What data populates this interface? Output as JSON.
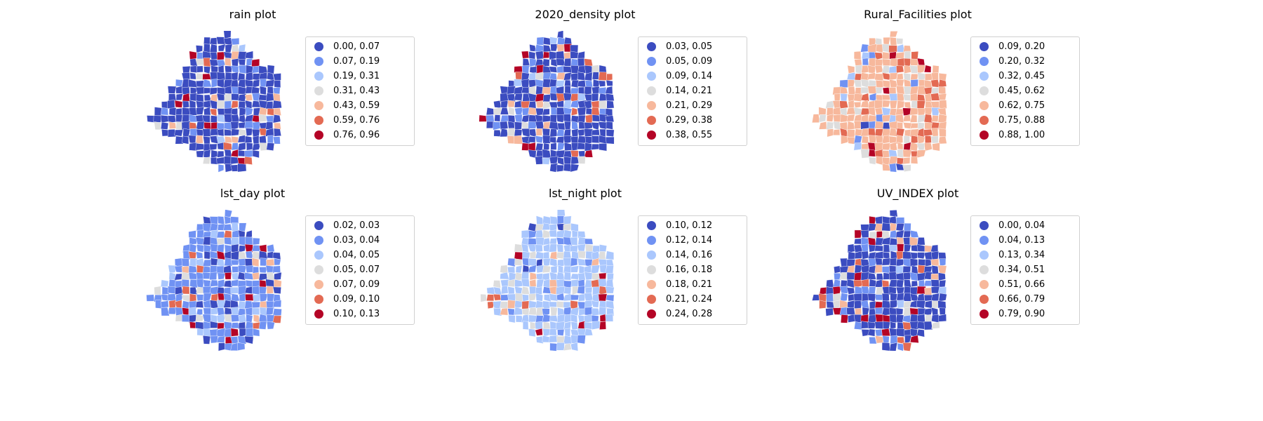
{
  "colors": {
    "class_1": "#3b4cc0",
    "class_2": "#7092f3",
    "class_3": "#aac7fd",
    "class_4": "#dddddd",
    "class_5": "#f7b89c",
    "class_6": "#e36a53",
    "class_7": "#b40426"
  },
  "panels": [
    {
      "title": "rain plot",
      "legend": [
        "0.00, 0.07",
        "0.07, 0.19",
        "0.19, 0.31",
        "0.31, 0.43",
        "0.43, 0.59",
        "0.59, 0.76",
        "0.76, 0.96"
      ],
      "dominant_class": 1
    },
    {
      "title": "2020_density plot",
      "legend": [
        "0.03, 0.05",
        "0.05, 0.09",
        "0.09, 0.14",
        "0.14, 0.21",
        "0.21, 0.29",
        "0.29, 0.38",
        "0.38, 0.55"
      ],
      "dominant_class": 1
    },
    {
      "title": "Rural_Facilities plot",
      "legend": [
        "0.09, 0.20",
        "0.20, 0.32",
        "0.32, 0.45",
        "0.45, 0.62",
        "0.62, 0.75",
        "0.75, 0.88",
        "0.88, 1.00"
      ],
      "dominant_class": 5
    },
    {
      "title": "lst_day plot",
      "legend": [
        "0.02, 0.03",
        "0.03, 0.04",
        "0.04, 0.05",
        "0.05, 0.07",
        "0.07, 0.09",
        "0.09, 0.10",
        "0.10, 0.13"
      ],
      "dominant_class": 2
    },
    {
      "title": "lst_night plot",
      "legend": [
        "0.10, 0.12",
        "0.12, 0.14",
        "0.14, 0.16",
        "0.16, 0.18",
        "0.18, 0.21",
        "0.21, 0.24",
        "0.24, 0.28"
      ],
      "dominant_class": 3
    },
    {
      "title": "UV_INDEX plot",
      "legend": [
        "0.00, 0.04",
        "0.04, 0.13",
        "0.13, 0.34",
        "0.34, 0.51",
        "0.51, 0.66",
        "0.66, 0.79",
        "0.79, 0.90"
      ],
      "dominant_class": 1
    }
  ]
}
